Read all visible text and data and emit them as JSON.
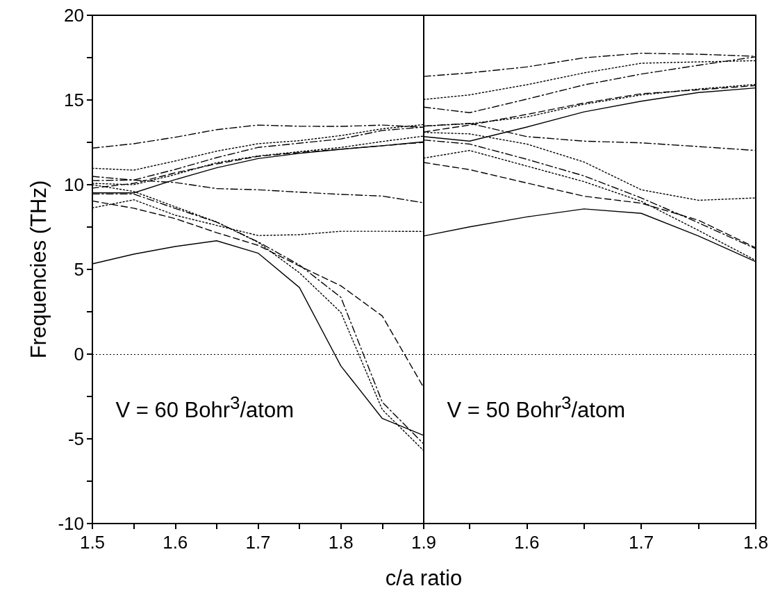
{
  "chart_data": [
    {
      "type": "line",
      "xlabel": "c/a ratio",
      "ylabel": "Frequencies (THz)",
      "annotations": [
        "V = 60 Bohr$^{3}$/atom"
      ],
      "x": [
        1.5,
        1.55,
        1.6,
        1.65,
        1.7,
        1.75,
        1.8,
        1.85,
        1.9
      ],
      "xlim": [
        1.5,
        1.9
      ],
      "xticks": [
        1.5,
        {
          "value": 1.55,
          "label": null
        },
        1.6,
        {
          "value": 1.65,
          "label": null
        },
        1.7,
        {
          "value": 1.75,
          "label": null
        },
        1.8,
        {
          "value": 1.85,
          "label": null
        },
        1.9
      ],
      "ylim": [
        -10,
        20
      ],
      "yticks": [
        -10,
        {
          "value": -7.5,
          "label": null
        },
        -5,
        {
          "value": -2.5,
          "label": null
        },
        0,
        {
          "value": 2.5,
          "label": null
        },
        5,
        {
          "value": 7.5,
          "label": null
        },
        10,
        {
          "value": 12.5,
          "label": null
        },
        15,
        {
          "value": 17.5,
          "label": null
        },
        20
      ],
      "grid": false,
      "marker": "none",
      "ref_lines": [
        {
          "axis": "y",
          "value": 0,
          "line_style": "dotted",
          "color": "#000000"
        }
      ],
      "series": [
        {
          "color": "#000000",
          "line_style": "solid",
          "values": [
            5.33,
            5.9,
            6.35,
            6.69,
            5.96,
            3.93,
            -0.7,
            -3.8,
            -4.8
          ]
        },
        {
          "color": "#000000",
          "line_style": "solid",
          "values": [
            9.52,
            9.52,
            10.3,
            11.0,
            11.54,
            11.85,
            12.09,
            12.3,
            12.53
          ]
        },
        {
          "color": "#000000",
          "line_style": "dashdot",
          "values": [
            12.16,
            12.42,
            12.8,
            13.25,
            13.52,
            13.45,
            13.44,
            13.52,
            13.39
          ]
        },
        {
          "color": "#000000",
          "line_style": "dashdot",
          "values": [
            10.49,
            10.27,
            10.13,
            9.77,
            9.7,
            9.56,
            9.43,
            9.33,
            8.93
          ]
        },
        {
          "color": "#000000",
          "line_style": "dotted",
          "values": [
            10.97,
            10.86,
            11.4,
            11.98,
            12.42,
            12.6,
            12.9,
            13.3,
            13.55
          ]
        },
        {
          "color": "#000000",
          "line_style": "dashdot",
          "values": [
            10.24,
            10.28,
            10.9,
            11.6,
            12.2,
            12.45,
            12.7,
            13.2,
            13.4
          ]
        },
        {
          "color": "#000000",
          "line_style": "dashed",
          "values": [
            9.8,
            10.08,
            10.7,
            11.23,
            11.67,
            11.9,
            12.1,
            12.3,
            12.5
          ]
        },
        {
          "color": "#000000",
          "line_style": "dotted",
          "values": [
            10.08,
            10.0,
            10.6,
            11.3,
            11.7,
            11.95,
            12.2,
            12.55,
            12.87
          ]
        },
        {
          "color": "#000000",
          "line_style": "dashed",
          "values": [
            9.04,
            8.61,
            8.0,
            7.17,
            6.42,
            5.2,
            4.03,
            2.25,
            -1.98
          ]
        },
        {
          "color": "#000000",
          "line_style": "dashdot",
          "values": [
            9.45,
            9.45,
            8.6,
            7.79,
            6.63,
            5.26,
            3.35,
            -2.84,
            -5.3
          ]
        },
        {
          "color": "#000000",
          "line_style": "dotted",
          "values": [
            10.0,
            9.6,
            8.7,
            7.8,
            6.6,
            4.8,
            2.46,
            -3.28,
            -5.7
          ]
        },
        {
          "color": "#000000",
          "line_style": "dotted",
          "values": [
            8.63,
            9.11,
            8.2,
            7.6,
            7.0,
            7.05,
            7.25,
            7.25,
            7.24
          ]
        }
      ]
    },
    {
      "type": "line",
      "annotations": [
        "V = 50 Bohr$^{3}$/atom"
      ],
      "x": [
        1.51,
        1.55,
        1.6,
        1.65,
        1.7,
        1.75,
        1.8
      ],
      "xlim": [
        1.51,
        1.8
      ],
      "xticks": [
        {
          "value": 1.55,
          "label": null
        },
        1.6,
        {
          "value": 1.65,
          "label": null
        },
        1.7,
        {
          "value": 1.75,
          "label": null
        },
        1.8
      ],
      "ylim": [
        -10,
        20
      ],
      "yticks": [
        -10,
        {
          "value": -7.5,
          "label": null
        },
        -5,
        {
          "value": -2.5,
          "label": null
        },
        0,
        {
          "value": 2.5,
          "label": null
        },
        5,
        {
          "value": 7.5,
          "label": null
        },
        10,
        {
          "value": 12.5,
          "label": null
        },
        15,
        {
          "value": 17.5,
          "label": null
        },
        20
      ],
      "tick_labels": "x",
      "grid": false,
      "marker": "none",
      "ref_lines": [
        {
          "axis": "y",
          "value": 0,
          "line_style": "dotted",
          "color": "#000000"
        }
      ],
      "series": [
        {
          "color": "#000000",
          "line_style": "dashdot",
          "values": [
            16.39,
            16.6,
            16.95,
            17.49,
            17.76,
            17.7,
            17.58
          ]
        },
        {
          "color": "#000000",
          "line_style": "dotted",
          "values": [
            15.03,
            15.3,
            15.9,
            16.6,
            17.17,
            17.25,
            17.32
          ]
        },
        {
          "color": "#000000",
          "line_style": "dashdot",
          "values": [
            14.58,
            14.25,
            15.05,
            15.89,
            16.53,
            17.05,
            17.55
          ]
        },
        {
          "color": "#000000",
          "line_style": "dashed",
          "values": [
            13.11,
            13.52,
            14.15,
            14.82,
            15.37,
            15.6,
            15.85
          ]
        },
        {
          "color": "#000000",
          "line_style": "dotted",
          "values": [
            13.46,
            13.6,
            14.0,
            14.75,
            15.3,
            15.65,
            15.92
          ]
        },
        {
          "color": "#000000",
          "line_style": "solid",
          "values": [
            12.84,
            12.57,
            13.4,
            14.3,
            14.93,
            15.44,
            15.71
          ]
        },
        {
          "color": "#000000",
          "line_style": "dashdot",
          "values": [
            13.46,
            13.62,
            12.84,
            12.57,
            12.47,
            12.25,
            12.02
          ]
        },
        {
          "color": "#000000",
          "line_style": "dotted",
          "values": [
            13.09,
            13.0,
            12.4,
            11.34,
            9.7,
            9.08,
            9.22
          ]
        },
        {
          "color": "#000000",
          "line_style": "dashdot",
          "values": [
            12.64,
            12.4,
            11.5,
            10.52,
            9.22,
            7.75,
            6.22
          ]
        },
        {
          "color": "#000000",
          "line_style": "dotted",
          "values": [
            11.57,
            12.02,
            11.1,
            10.18,
            9.02,
            7.3,
            5.53
          ]
        },
        {
          "color": "#000000",
          "line_style": "dashed",
          "values": [
            11.31,
            10.89,
            10.1,
            9.32,
            8.91,
            7.9,
            6.28
          ]
        },
        {
          "color": "#000000",
          "line_style": "solid",
          "values": [
            6.97,
            7.51,
            8.1,
            8.57,
            8.31,
            6.97,
            5.46
          ]
        }
      ]
    }
  ]
}
